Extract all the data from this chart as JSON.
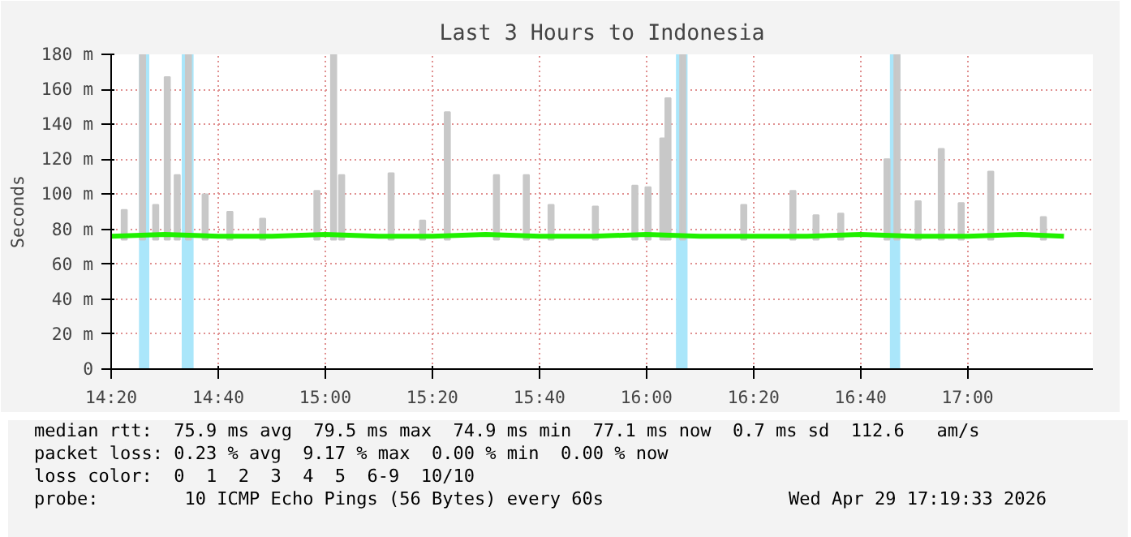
{
  "chart_data": {
    "type": "line",
    "title": "Last 3 Hours to Indonesia",
    "ylabel": "Seconds",
    "xlim": [
      14.3333,
      17.39
    ],
    "ylim": [
      0,
      180
    ],
    "xticks": [
      {
        "value": 14.3333,
        "label": "14:20"
      },
      {
        "value": 14.6667,
        "label": "14:40"
      },
      {
        "value": 15,
        "label": "15:00"
      },
      {
        "value": 15.3333,
        "label": "15:20"
      },
      {
        "value": 15.6667,
        "label": "15:40"
      },
      {
        "value": 16,
        "label": "16:00"
      },
      {
        "value": 16.3333,
        "label": "16:20"
      },
      {
        "value": 16.6667,
        "label": "16:40"
      },
      {
        "value": 17,
        "label": "17:00"
      }
    ],
    "yticks": [
      0,
      {
        "value": 20,
        "label": "20 m"
      },
      {
        "value": 40,
        "label": "40 m"
      },
      {
        "value": 60,
        "label": "60 m"
      },
      {
        "value": 80,
        "label": "80 m"
      },
      {
        "value": 100,
        "label": "100 m"
      },
      {
        "value": 120,
        "label": "120 m"
      },
      {
        "value": 140,
        "label": "140 m"
      },
      {
        "value": 160,
        "label": "160 m"
      },
      {
        "value": 180,
        "label": "180 m"
      }
    ],
    "grid": true,
    "series": [
      {
        "type": "bar",
        "color": "#c8c8c8",
        "x": [
          14.374,
          14.431,
          14.472,
          14.508,
          14.539,
          14.574,
          14.626,
          14.703,
          14.805,
          14.974,
          15.026,
          15.051,
          15.205,
          15.303,
          15.38,
          15.533,
          15.626,
          15.703,
          15.841,
          15.964,
          16.005,
          16.051,
          16.067,
          16.113,
          16.303,
          16.456,
          16.528,
          16.605,
          16.749,
          16.78,
          16.846,
          16.918,
          16.98,
          17.072,
          17.236
        ],
        "base": [
          74,
          74,
          74,
          74,
          74,
          74,
          74,
          74,
          74,
          74,
          74,
          74,
          74,
          74,
          74,
          74,
          74,
          74,
          74,
          74,
          74,
          74,
          74,
          74,
          74,
          74,
          74,
          74,
          74,
          74,
          74,
          74,
          74,
          74,
          74
        ],
        "values": [
          17,
          106,
          20,
          93,
          37,
          106,
          26,
          16,
          12,
          28,
          106,
          37,
          38,
          11,
          73,
          37,
          37,
          20,
          19,
          31,
          30,
          58,
          81,
          106,
          20,
          28,
          14,
          15,
          46,
          106,
          22,
          52,
          21,
          39,
          13
        ]
      },
      {
        "color": "#20f000",
        "x": [
          14.3333,
          14.5,
          14.6667,
          14.8333,
          15,
          15.1667,
          15.3333,
          15.5,
          15.6667,
          15.8333,
          16,
          16.1667,
          16.3333,
          16.5,
          16.6667,
          16.8333,
          17,
          17.1667,
          17.3
        ],
        "values": [
          76,
          77,
          76,
          76,
          77,
          76,
          76,
          77,
          76,
          76,
          77,
          76,
          76,
          76,
          77,
          76,
          76,
          77,
          76
        ]
      }
    ],
    "bands": [
      {
        "axis": "x",
        "from": 14.42,
        "to": 14.452,
        "color": "#aae6fa"
      },
      {
        "axis": "x",
        "from": 14.553,
        "to": 14.59,
        "color": "#aae6fa"
      },
      {
        "axis": "x",
        "from": 16.092,
        "to": 16.128,
        "color": "#aae6fa"
      },
      {
        "axis": "x",
        "from": 16.758,
        "to": 16.79,
        "color": "#aae6fa"
      }
    ],
    "annotations": [
      "median rtt:  75.9 ms avg  79.5 ms max  74.9 ms min  77.1 ms now  0.7 ms sd  112.6   am/s",
      "packet loss: 0.23 % avg  9.17 % max  0.00 % min  0.00 % now",
      "loss color:  0  1  2  3  4  5  6-9  10/10",
      "probe:        10 ICMP Echo Pings (56 Bytes) every 60s",
      "Wed Apr 29 17:19:33 2026"
    ]
  }
}
